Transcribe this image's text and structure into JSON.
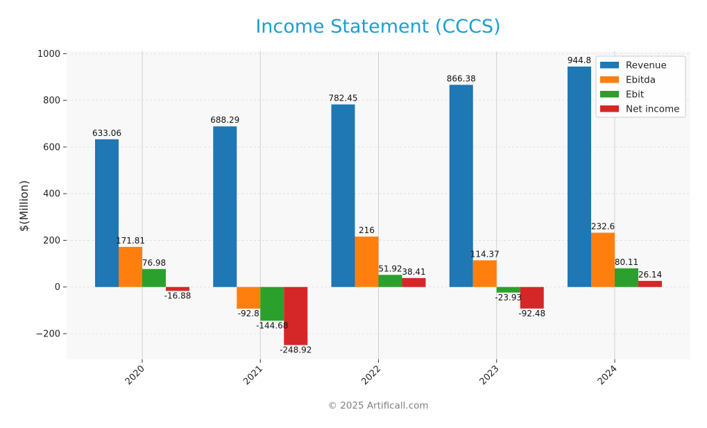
{
  "chart_data": {
    "type": "bar",
    "title": "Income Statement (CCCS)",
    "xlabel": "",
    "ylabel": "$(Million)",
    "categories": [
      "2020",
      "2021",
      "2022",
      "2023",
      "2024"
    ],
    "series": [
      {
        "name": "Revenue",
        "color": "#1f77b4",
        "values": [
          633.06,
          688.29,
          782.45,
          866.38,
          944.8
        ]
      },
      {
        "name": "Ebitda",
        "color": "#ff7f0e",
        "values": [
          171.81,
          -92.8,
          216,
          114.37,
          232.6
        ]
      },
      {
        "name": "Ebit",
        "color": "#2ca02c",
        "values": [
          76.98,
          -144.68,
          51.92,
          -23.93,
          80.11
        ]
      },
      {
        "name": "Net income",
        "color": "#d62728",
        "values": [
          -16.88,
          -248.92,
          38.41,
          -92.48,
          26.14
        ]
      }
    ],
    "ylim": [
      -310,
      1010
    ],
    "yticks": [
      -200,
      0,
      200,
      400,
      600,
      800,
      1000
    ],
    "grid": true,
    "legend_position": "top-right",
    "footer": "© 2025 Artificall.com"
  }
}
